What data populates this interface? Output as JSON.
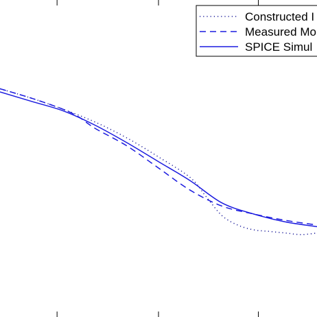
{
  "chart_data": {
    "type": "line",
    "x_range": [
      0,
      1
    ],
    "y_range": [
      0,
      1
    ],
    "grid": false,
    "legend_placement": "top-right",
    "series": [
      {
        "name": "Constructed",
        "legend_label": "Constructed I",
        "style": "dotted",
        "color": "#1a1a99",
        "points": [
          [
            0.0,
            0.72
          ],
          [
            0.1,
            0.69
          ],
          [
            0.2,
            0.655
          ],
          [
            0.3,
            0.615
          ],
          [
            0.4,
            0.565
          ],
          [
            0.5,
            0.505
          ],
          [
            0.6,
            0.44
          ],
          [
            0.65,
            0.38
          ],
          [
            0.7,
            0.32
          ],
          [
            0.75,
            0.29
          ],
          [
            0.8,
            0.275
          ],
          [
            0.85,
            0.27
          ],
          [
            0.9,
            0.265
          ],
          [
            0.95,
            0.26
          ],
          [
            1.0,
            0.265
          ]
        ]
      },
      {
        "name": "Measured",
        "legend_label": "Measured Mo",
        "style": "dashed",
        "color": "#1a1adf",
        "points": [
          [
            0.0,
            0.72
          ],
          [
            0.1,
            0.69
          ],
          [
            0.2,
            0.655
          ],
          [
            0.25,
            0.63
          ],
          [
            0.3,
            0.595
          ],
          [
            0.4,
            0.54
          ],
          [
            0.5,
            0.47
          ],
          [
            0.6,
            0.4
          ],
          [
            0.7,
            0.35
          ],
          [
            0.8,
            0.325
          ],
          [
            0.9,
            0.305
          ],
          [
            1.0,
            0.29
          ]
        ]
      },
      {
        "name": "SPICE Simulated",
        "legend_label": "SPICE Simul",
        "style": "solid",
        "color": "#1a1adf",
        "points": [
          [
            0.0,
            0.71
          ],
          [
            0.1,
            0.68
          ],
          [
            0.2,
            0.65
          ],
          [
            0.3,
            0.605
          ],
          [
            0.4,
            0.55
          ],
          [
            0.5,
            0.49
          ],
          [
            0.6,
            0.43
          ],
          [
            0.7,
            0.36
          ],
          [
            0.8,
            0.325
          ],
          [
            0.9,
            0.3
          ],
          [
            1.0,
            0.285
          ]
        ]
      }
    ],
    "x_ticks": [
      0.18,
      0.5,
      0.815
    ]
  }
}
